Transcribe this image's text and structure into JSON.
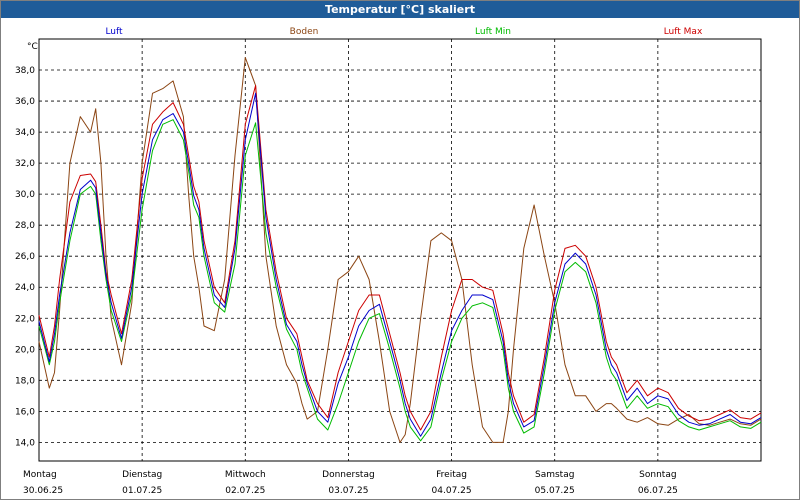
{
  "window": {
    "title": "Temperatur [°C] skaliert"
  },
  "chart_data": {
    "type": "line",
    "title": "Temperatur [°C] skaliert",
    "ylabel": "°C",
    "xlabel": "",
    "ylim": [
      12.8,
      40.0
    ],
    "xlim": [
      0,
      7
    ],
    "grid": true,
    "yticks": [
      14,
      16,
      18,
      20,
      22,
      24,
      26,
      28,
      30,
      32,
      34,
      36,
      38
    ],
    "ytick_labels": [
      "14,0",
      "16,0",
      "18,0",
      "20,0",
      "22,0",
      "24,0",
      "26,0",
      "28,0",
      "30,0",
      "32,0",
      "34,0",
      "36,0",
      "38,0"
    ],
    "xticks": [
      {
        "day": "Montag",
        "date": "30.06.25"
      },
      {
        "day": "Dienstag",
        "date": "01.07.25"
      },
      {
        "day": "Mittwoch",
        "date": "02.07.25"
      },
      {
        "day": "Donnerstag",
        "date": "03.07.25"
      },
      {
        "day": "Freitag",
        "date": "04.07.25"
      },
      {
        "day": "Samstag",
        "date": "05.07.25"
      },
      {
        "day": "Sonntag",
        "date": "06.07.25"
      }
    ],
    "x": [
      0.0,
      0.1,
      0.15,
      0.2,
      0.3,
      0.4,
      0.5,
      0.55,
      0.6,
      0.65,
      0.7,
      0.8,
      0.9,
      1.0,
      1.1,
      1.2,
      1.3,
      1.4,
      1.45,
      1.5,
      1.55,
      1.6,
      1.7,
      1.8,
      1.9,
      2.0,
      2.1,
      2.2,
      2.3,
      2.4,
      2.5,
      2.55,
      2.6,
      2.7,
      2.8,
      2.9,
      3.0,
      3.1,
      3.2,
      3.3,
      3.4,
      3.5,
      3.55,
      3.6,
      3.7,
      3.8,
      3.9,
      4.0,
      4.1,
      4.2,
      4.3,
      4.4,
      4.5,
      4.55,
      4.6,
      4.7,
      4.8,
      4.9,
      5.0,
      5.1,
      5.2,
      5.3,
      5.4,
      5.5,
      5.55,
      5.6,
      5.7,
      5.8,
      5.9,
      6.0,
      6.1,
      6.2,
      6.3,
      6.4,
      6.5,
      6.6,
      6.7,
      6.8,
      6.9,
      7.0
    ],
    "series": [
      {
        "name": "Luft",
        "color": "#0000cc",
        "values": [
          21.8,
          19.2,
          21.0,
          23.5,
          27.5,
          30.3,
          30.9,
          30.4,
          27.5,
          24.8,
          23.0,
          20.7,
          24.0,
          30.0,
          33.5,
          34.8,
          35.2,
          34.0,
          32.0,
          29.9,
          29.0,
          26.5,
          23.5,
          22.7,
          26.5,
          33.5,
          36.5,
          28.5,
          24.5,
          21.6,
          20.5,
          19.0,
          17.8,
          16.0,
          15.3,
          17.8,
          19.5,
          21.5,
          22.5,
          22.9,
          20.5,
          18.0,
          16.5,
          15.5,
          14.4,
          15.5,
          18.5,
          21.2,
          22.5,
          23.5,
          23.5,
          23.2,
          20.5,
          18.0,
          16.5,
          15.0,
          15.4,
          19.0,
          23.0,
          25.5,
          26.2,
          25.5,
          23.5,
          20.0,
          19.0,
          18.5,
          16.7,
          17.5,
          16.5,
          17.0,
          16.8,
          15.8,
          15.3,
          15.1,
          15.2,
          15.5,
          15.8,
          15.3,
          15.2,
          15.6
        ]
      },
      {
        "name": "Boden",
        "color": "#8b4513",
        "values": [
          20.5,
          17.5,
          18.5,
          22.5,
          32.0,
          35.0,
          34.0,
          35.5,
          32.0,
          26.0,
          22.0,
          19.0,
          23.0,
          32.0,
          36.5,
          36.8,
          37.3,
          35.0,
          30.0,
          26.0,
          24.0,
          21.5,
          21.2,
          24.5,
          32.5,
          38.8,
          37.0,
          26.0,
          21.5,
          19.0,
          17.8,
          16.5,
          15.5,
          16.0,
          20.0,
          24.5,
          25.0,
          26.0,
          24.5,
          20.5,
          16.0,
          14.0,
          14.5,
          16.5,
          22.0,
          27.0,
          27.5,
          27.0,
          24.5,
          19.0,
          15.0,
          14.0,
          14.0,
          16.0,
          20.0,
          26.5,
          29.3,
          26.0,
          23.0,
          19.0,
          17.0,
          17.0,
          16.0,
          16.5,
          16.5,
          16.2,
          15.5,
          15.3,
          15.6,
          15.2,
          15.1,
          15.5,
          15.8,
          15.2,
          15.1,
          15.3,
          15.5,
          15.2,
          15.1,
          15.5
        ]
      },
      {
        "name": "Luft Min",
        "color": "#00bb00",
        "values": [
          21.5,
          19.0,
          20.5,
          23.0,
          27.0,
          30.0,
          30.5,
          30.0,
          27.0,
          24.5,
          22.5,
          20.5,
          23.5,
          29.0,
          32.8,
          34.5,
          34.8,
          33.5,
          31.5,
          29.3,
          28.5,
          26.0,
          23.0,
          22.4,
          25.5,
          32.5,
          34.6,
          27.5,
          24.0,
          21.3,
          20.0,
          18.5,
          17.5,
          15.5,
          14.8,
          16.5,
          18.5,
          20.5,
          22.0,
          22.3,
          20.0,
          17.5,
          16.0,
          15.0,
          14.1,
          15.0,
          18.0,
          20.5,
          22.0,
          22.8,
          23.0,
          22.7,
          20.0,
          17.5,
          16.0,
          14.6,
          15.0,
          18.5,
          22.5,
          25.0,
          25.6,
          25.0,
          23.0,
          19.5,
          18.5,
          18.0,
          16.2,
          17.0,
          16.2,
          16.5,
          16.3,
          15.4,
          15.0,
          14.8,
          15.0,
          15.2,
          15.4,
          15.0,
          14.9,
          15.3
        ]
      },
      {
        "name": "Luft Max",
        "color": "#cc0000",
        "values": [
          22.2,
          19.5,
          21.5,
          24.5,
          29.5,
          31.2,
          31.3,
          30.8,
          28.0,
          25.0,
          23.5,
          21.0,
          24.5,
          31.0,
          34.5,
          35.3,
          35.9,
          34.5,
          32.5,
          30.5,
          29.5,
          27.0,
          24.0,
          23.0,
          27.0,
          34.5,
          37.0,
          29.0,
          25.0,
          22.0,
          21.0,
          19.5,
          18.0,
          16.5,
          15.6,
          18.5,
          20.5,
          22.5,
          23.5,
          23.5,
          21.0,
          18.5,
          17.0,
          16.0,
          14.8,
          16.0,
          19.5,
          22.5,
          24.5,
          24.5,
          24.0,
          23.8,
          21.0,
          18.5,
          17.0,
          15.3,
          15.8,
          19.5,
          23.8,
          26.5,
          26.7,
          26.0,
          24.0,
          20.5,
          19.5,
          19.0,
          17.2,
          18.0,
          17.0,
          17.5,
          17.2,
          16.2,
          15.7,
          15.4,
          15.5,
          15.8,
          16.1,
          15.6,
          15.5,
          15.9
        ]
      }
    ]
  }
}
